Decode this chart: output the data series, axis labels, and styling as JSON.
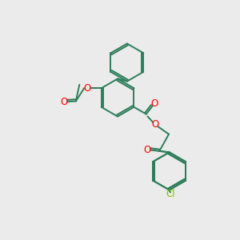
{
  "bg_color": "#ebebeb",
  "bond_color": "#2d7d5a",
  "oxygen_color": "#ff0000",
  "chlorine_color": "#80c000",
  "line_width": 1.4,
  "dbo": 0.07,
  "figsize": [
    3.0,
    3.0
  ],
  "dpi": 100,
  "xlim": [
    0,
    10
  ],
  "ylim": [
    0,
    10
  ],
  "ring_r": 0.85
}
